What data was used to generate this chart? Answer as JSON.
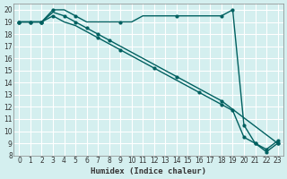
{
  "background_color": "#d4efef",
  "grid_color": "#ffffff",
  "line_color": "#006060",
  "marker_color": "#006060",
  "xlabel": "Humidex (Indice chaleur)",
  "xlim": [
    -0.5,
    23.5
  ],
  "ylim": [
    8,
    20.5
  ],
  "xticks": [
    0,
    1,
    2,
    3,
    4,
    5,
    6,
    7,
    8,
    9,
    10,
    11,
    12,
    13,
    14,
    15,
    16,
    17,
    18,
    19,
    20,
    21,
    22,
    23
  ],
  "yticks": [
    8,
    9,
    10,
    11,
    12,
    13,
    14,
    15,
    16,
    17,
    18,
    19,
    20
  ],
  "line1_x": [
    0,
    1,
    2,
    3,
    4,
    5,
    6,
    7,
    8,
    9,
    10,
    11,
    12,
    13,
    14,
    15,
    16,
    17,
    18,
    19,
    20,
    21,
    22,
    23
  ],
  "line1_y": [
    19,
    19,
    19,
    20,
    20,
    19.5,
    19,
    19,
    19,
    19,
    19,
    19.5,
    19.5,
    19.5,
    19.5,
    19.5,
    19.5,
    19.5,
    19.5,
    20,
    10.5,
    9,
    8.3,
    9
  ],
  "line2_x": [
    0,
    1,
    2,
    3,
    4,
    5,
    6,
    7,
    8,
    9,
    10,
    11,
    12,
    13,
    14,
    15,
    16,
    17,
    18,
    23
  ],
  "line2_y": [
    19,
    19,
    19,
    19.8,
    19.5,
    19,
    18.5,
    18,
    17.5,
    17,
    16.5,
    16,
    15.5,
    15,
    14.5,
    14,
    13.5,
    13,
    12.5,
    9
  ],
  "line3_x": [
    0,
    1,
    2,
    3,
    4,
    5,
    6,
    7,
    8,
    9,
    10,
    11,
    12,
    13,
    14,
    15,
    16,
    17,
    18,
    19,
    20,
    21,
    22,
    23
  ],
  "line3_y": [
    19,
    19,
    19,
    19.5,
    19,
    18.7,
    18.2,
    17.7,
    17.2,
    16.7,
    16.2,
    15.7,
    15.2,
    14.7,
    14.2,
    13.7,
    13.2,
    12.7,
    12.2,
    11.7,
    9.5,
    9.0,
    8.5,
    9.2
  ],
  "marker_x1": [
    0,
    1,
    2,
    3,
    5,
    9,
    14,
    18,
    19,
    20,
    21,
    22,
    23
  ],
  "marker_y1": [
    19,
    19,
    19,
    20,
    19.5,
    19,
    19.5,
    19.5,
    20,
    10.5,
    9,
    8.3,
    9
  ],
  "marker_x2": [
    0,
    2,
    4,
    5,
    6,
    7,
    8,
    14,
    18,
    23
  ],
  "marker_y2": [
    19,
    19,
    19.5,
    19,
    18.5,
    18,
    17.5,
    14.5,
    12.5,
    9
  ],
  "marker_x3": [
    0,
    1,
    2,
    3,
    7,
    9,
    12,
    16,
    18,
    19,
    20,
    21,
    22,
    23
  ],
  "marker_y3": [
    19,
    19,
    19,
    19.5,
    17.7,
    16.7,
    15.2,
    13.2,
    12.2,
    11.7,
    9.5,
    9.0,
    8.5,
    9.2
  ]
}
